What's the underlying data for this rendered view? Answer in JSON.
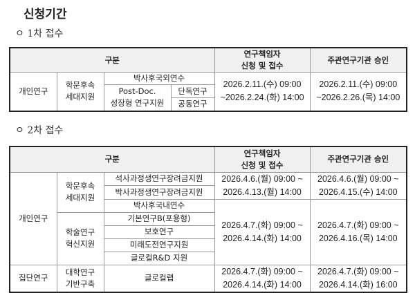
{
  "title": "신청기간",
  "round1": {
    "label": "ㅇ 1차 접수",
    "headers": {
      "category": "구분",
      "applicant": "연구책임자\n신청 및 접수",
      "approval": "주관연구기관 승인"
    },
    "rows": {
      "type": "개인연구",
      "group": "학문후속\n세대지원",
      "item1": "박사후국외연수",
      "item2": "Post-Doc.\n성장형 연구지원",
      "sub1": "단독연구",
      "sub2": "공동연구",
      "applicant_period": "2026.2.11.(수) 09:00\n~2026.2.24.(화) 14:00",
      "approval_period": "2026.2.11.(수) 09:00\n~2026.2.26.(목) 14:00"
    }
  },
  "round2": {
    "label": "ㅇ 2차 접수",
    "headers": {
      "category": "구분",
      "applicant": "연구책임자\n신청 및 접수",
      "approval": "주관연구기관 승인"
    },
    "type_individual": "개인연구",
    "group1": "학문후속\n세대지원",
    "group2": "학술연구\n혁신지원",
    "items": [
      "석사과정생연구장려금지원",
      "박사과정생연구장려금지원",
      "박사후국내연수",
      "기본연구B(포용형)",
      "보호연구",
      "미래도전연구지원",
      "글로컬R&D 지원"
    ],
    "period_a_applicant": "2026.4.6.(월) 09:00 ~\n2026.4.13.(월) 14:00",
    "period_a_approval": "2026.4.6.(월) 09:00 ~\n2026.4.15.(수) 14:00",
    "period_b_applicant": "2026.4.7.(화) 09:00 ~\n2026.4.14.(화) 14:00",
    "period_b_approval": "2026.4.7.(화) 09:00 ~\n2026.4.16.(목) 14:00",
    "type_group": "집단연구",
    "group3": "대학연구\n기반구축",
    "item_group": "글로컬랩",
    "period_c_applicant": "2026.4.7.(화) 09:00 ~\n2026.4.14.(화) 14:00",
    "period_c_approval": "2026.4.7.(화) 09:00 ~\n2026.4.14.(화) 16:00"
  }
}
